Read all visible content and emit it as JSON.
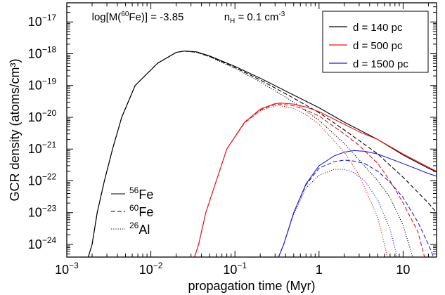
{
  "chart_data": {
    "type": "line",
    "xlabel": "propagation time (Myr)",
    "ylabel": "GCR density (atoms/cm³)",
    "x_scale": "log",
    "y_scale": "log",
    "xlim": [
      0.001,
      25
    ],
    "ylim": [
      4e-25,
      4e-17
    ],
    "x_ticks": [
      {
        "value": 0.001,
        "base": "10",
        "exp": "−3"
      },
      {
        "value": 0.01,
        "base": "10",
        "exp": "−2"
      },
      {
        "value": 0.1,
        "base": "10",
        "exp": "−1"
      },
      {
        "value": 1,
        "base": "1",
        "exp": ""
      },
      {
        "value": 10,
        "base": "10",
        "exp": ""
      }
    ],
    "y_ticks": [
      {
        "value": 1e-24,
        "base": "10",
        "exp": "−24"
      },
      {
        "value": 1e-23,
        "base": "10",
        "exp": "−23"
      },
      {
        "value": 1e-22,
        "base": "10",
        "exp": "−22"
      },
      {
        "value": 1e-21,
        "base": "10",
        "exp": "−21"
      },
      {
        "value": 1e-20,
        "base": "10",
        "exp": "−20"
      },
      {
        "value": 1e-19,
        "base": "10",
        "exp": "−19"
      },
      {
        "value": 1e-18,
        "base": "10",
        "exp": "−18"
      },
      {
        "value": 1e-17,
        "base": "10",
        "exp": "−17"
      }
    ],
    "annotations": {
      "mass": {
        "pre": "log[M(",
        "sup": "60",
        "post": "Fe)] = -3.85"
      },
      "density": {
        "pre": "n",
        "sub": "H",
        "mid": " = 0.1 cm",
        "sup": "-3"
      }
    },
    "distance_legend": [
      {
        "label": "d = 140 pc",
        "color": "#000000"
      },
      {
        "label": "d = 500 pc",
        "color": "#e8141b"
      },
      {
        "label": "d = 1500 pc",
        "color": "#1f1fd8"
      }
    ],
    "isotope_legend": [
      {
        "sup": "56",
        "element": "Fe",
        "dash": "solid"
      },
      {
        "sup": "60",
        "element": "Fe",
        "dash": "dashed"
      },
      {
        "sup": "26",
        "element": "Al",
        "dash": "dotted"
      }
    ],
    "series": [
      {
        "distance": "d = 140 pc",
        "isotope": "56Fe",
        "color": "#000000",
        "dash": "solid",
        "points": [
          [
            0.0018,
            4e-25
          ],
          [
            0.002,
            1e-24
          ],
          [
            0.0023,
            1e-23
          ],
          [
            0.0028,
            1e-22
          ],
          [
            0.0035,
            1e-21
          ],
          [
            0.0045,
            1e-20
          ],
          [
            0.0065,
            1e-19
          ],
          [
            0.012,
            5e-19
          ],
          [
            0.02,
            1.1e-18
          ],
          [
            0.025,
            1.22e-18
          ],
          [
            0.035,
            1.15e-18
          ],
          [
            0.05,
            8.5e-19
          ],
          [
            0.1,
            4e-19
          ],
          [
            0.2,
            1.7e-19
          ],
          [
            0.5,
            5e-20
          ],
          [
            1,
            2e-20
          ],
          [
            2,
            7e-21
          ],
          [
            5,
            2e-21
          ],
          [
            10,
            6.5e-22
          ],
          [
            20,
            2.5e-22
          ],
          [
            25,
            1.9e-22
          ]
        ]
      },
      {
        "distance": "d = 140 pc",
        "isotope": "60Fe",
        "color": "#000000",
        "dash": "dashed",
        "points": [
          [
            0.0018,
            4e-25
          ],
          [
            0.002,
            1e-24
          ],
          [
            0.0023,
            1e-23
          ],
          [
            0.0028,
            1e-22
          ],
          [
            0.0035,
            1e-21
          ],
          [
            0.0045,
            1e-20
          ],
          [
            0.0065,
            1e-19
          ],
          [
            0.012,
            5e-19
          ],
          [
            0.02,
            1.1e-18
          ],
          [
            0.025,
            1.21e-18
          ],
          [
            0.035,
            1.12e-18
          ],
          [
            0.05,
            8.2e-19
          ],
          [
            0.1,
            3.7e-19
          ],
          [
            0.2,
            1.5e-19
          ],
          [
            0.5,
            4e-20
          ],
          [
            1,
            1.4e-20
          ],
          [
            2,
            4e-21
          ],
          [
            5,
            7e-22
          ],
          [
            10,
            1.3e-22
          ],
          [
            20,
            2e-23
          ],
          [
            25,
            1e-23
          ]
        ]
      },
      {
        "distance": "d = 140 pc",
        "isotope": "26Al",
        "color": "#000000",
        "dash": "dotted",
        "points": [
          [
            0.0018,
            4e-25
          ],
          [
            0.002,
            1e-24
          ],
          [
            0.0023,
            1e-23
          ],
          [
            0.0028,
            1e-22
          ],
          [
            0.0035,
            1e-21
          ],
          [
            0.0045,
            1e-20
          ],
          [
            0.0065,
            1e-19
          ],
          [
            0.012,
            5e-19
          ],
          [
            0.02,
            1.1e-18
          ],
          [
            0.025,
            1.2e-18
          ],
          [
            0.035,
            1.1e-18
          ],
          [
            0.05,
            8e-19
          ],
          [
            0.1,
            3.5e-19
          ],
          [
            0.2,
            1.3e-19
          ],
          [
            0.5,
            3e-20
          ],
          [
            1,
            8e-21
          ],
          [
            2,
            1.5e-21
          ],
          [
            5,
            1e-22
          ],
          [
            7,
            3e-23
          ],
          [
            10,
            4e-24
          ],
          [
            13,
            4e-25
          ]
        ]
      },
      {
        "distance": "d = 500 pc",
        "isotope": "56Fe",
        "color": "#e8141b",
        "dash": "solid",
        "points": [
          [
            0.033,
            4e-25
          ],
          [
            0.037,
            1e-24
          ],
          [
            0.045,
            1e-23
          ],
          [
            0.06,
            1e-22
          ],
          [
            0.08,
            1e-21
          ],
          [
            0.13,
            7e-21
          ],
          [
            0.2,
            1.8e-20
          ],
          [
            0.3,
            2.7e-20
          ],
          [
            0.35,
            2.8e-20
          ],
          [
            0.5,
            2.6e-20
          ],
          [
            0.7,
            2.1e-20
          ],
          [
            1,
            1.5e-20
          ],
          [
            2,
            6e-21
          ],
          [
            3,
            3.5e-21
          ],
          [
            5,
            2e-21
          ],
          [
            10,
            7e-22
          ],
          [
            20,
            2.7e-22
          ],
          [
            25,
            2e-22
          ]
        ]
      },
      {
        "distance": "d = 500 pc",
        "isotope": "60Fe",
        "color": "#e8141b",
        "dash": "dashed",
        "points": [
          [
            0.033,
            4e-25
          ],
          [
            0.037,
            1e-24
          ],
          [
            0.045,
            1e-23
          ],
          [
            0.06,
            1e-22
          ],
          [
            0.08,
            1e-21
          ],
          [
            0.13,
            6.8e-21
          ],
          [
            0.2,
            1.7e-20
          ],
          [
            0.3,
            2.55e-20
          ],
          [
            0.35,
            2.6e-20
          ],
          [
            0.5,
            2.3e-20
          ],
          [
            0.7,
            1.7e-20
          ],
          [
            1,
            1.1e-20
          ],
          [
            2,
            3e-21
          ],
          [
            3,
            1.3e-21
          ],
          [
            5,
            3.5e-22
          ],
          [
            7,
            1e-22
          ],
          [
            10,
            2e-23
          ],
          [
            15,
            2.5e-24
          ],
          [
            18,
            4e-25
          ]
        ]
      },
      {
        "distance": "d = 500 pc",
        "isotope": "26Al",
        "color": "#e8141b",
        "dash": "dotted",
        "points": [
          [
            0.033,
            4e-25
          ],
          [
            0.037,
            1e-24
          ],
          [
            0.045,
            1e-23
          ],
          [
            0.06,
            1e-22
          ],
          [
            0.08,
            1e-21
          ],
          [
            0.13,
            6.5e-21
          ],
          [
            0.2,
            1.6e-20
          ],
          [
            0.3,
            2.3e-20
          ],
          [
            0.35,
            2.3e-20
          ],
          [
            0.5,
            1.9e-20
          ],
          [
            0.7,
            1.2e-20
          ],
          [
            1,
            6e-21
          ],
          [
            2,
            8e-22
          ],
          [
            3,
            1.5e-22
          ],
          [
            5,
            7e-24
          ],
          [
            6,
            1e-24
          ],
          [
            6.5,
            4e-25
          ]
        ]
      },
      {
        "distance": "d = 1500 pc",
        "isotope": "56Fe",
        "color": "#1f1fd8",
        "dash": "solid",
        "points": [
          [
            0.33,
            4e-25
          ],
          [
            0.38,
            1e-24
          ],
          [
            0.5,
            1e-23
          ],
          [
            0.7,
            8e-23
          ],
          [
            1,
            3e-22
          ],
          [
            1.5,
            6e-22
          ],
          [
            2,
            8e-22
          ],
          [
            2.6,
            9e-22
          ],
          [
            3.5,
            8.5e-22
          ],
          [
            5,
            7e-22
          ],
          [
            7,
            5e-22
          ],
          [
            10,
            3.5e-22
          ],
          [
            15,
            2.3e-22
          ],
          [
            20,
            1.7e-22
          ],
          [
            25,
            1.4e-22
          ]
        ]
      },
      {
        "distance": "d = 1500 pc",
        "isotope": "60Fe",
        "color": "#1f1fd8",
        "dash": "dashed",
        "points": [
          [
            0.33,
            4e-25
          ],
          [
            0.38,
            1e-24
          ],
          [
            0.5,
            1e-23
          ],
          [
            0.7,
            7.5e-23
          ],
          [
            1,
            2.5e-22
          ],
          [
            1.5,
            4e-22
          ],
          [
            2,
            4.5e-22
          ],
          [
            2.6,
            4.2e-22
          ],
          [
            3.5,
            3.5e-22
          ],
          [
            5,
            2e-22
          ],
          [
            7,
            9e-23
          ],
          [
            10,
            3e-23
          ],
          [
            15,
            5e-24
          ],
          [
            20,
            1e-24
          ],
          [
            23,
            4e-25
          ]
        ]
      },
      {
        "distance": "d = 1500 pc",
        "isotope": "26Al",
        "color": "#1f1fd8",
        "dash": "dotted",
        "points": [
          [
            0.33,
            4e-25
          ],
          [
            0.38,
            1e-24
          ],
          [
            0.5,
            9e-24
          ],
          [
            0.7,
            6e-23
          ],
          [
            1,
            1.5e-22
          ],
          [
            1.5,
            2.3e-22
          ],
          [
            2,
            2.3e-22
          ],
          [
            2.6,
            1.8e-22
          ],
          [
            3.5,
            1e-22
          ],
          [
            5,
            2.5e-23
          ],
          [
            7,
            3e-24
          ],
          [
            8.5,
            4e-25
          ]
        ]
      }
    ]
  }
}
